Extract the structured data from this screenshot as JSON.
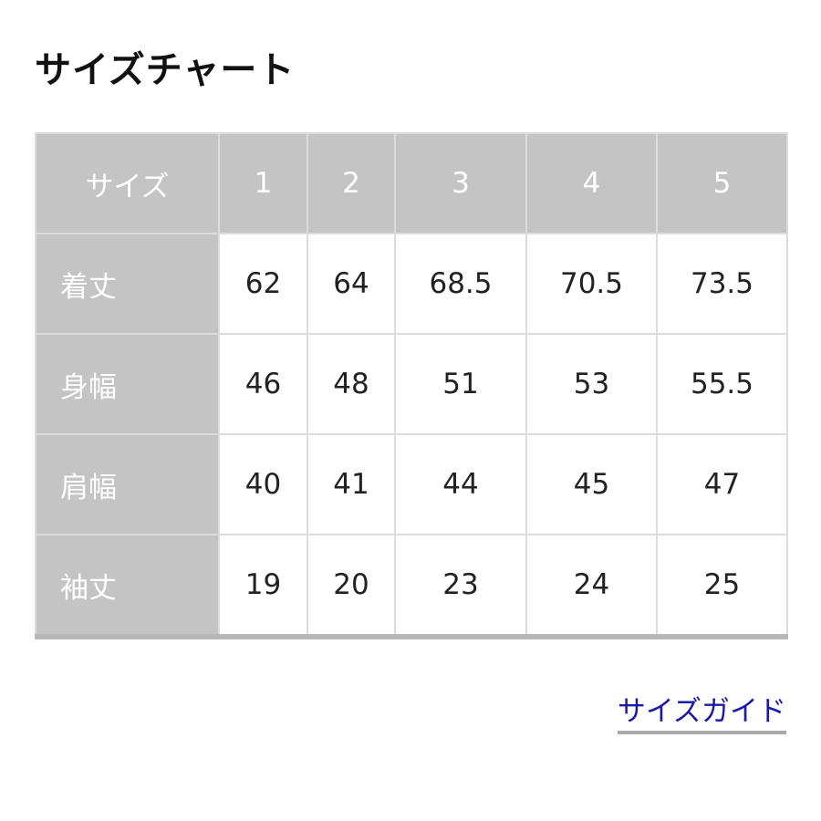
{
  "title": "サイズチャート",
  "table": {
    "corner": "サイズ",
    "sizes": [
      "1",
      "2",
      "3",
      "4",
      "5"
    ],
    "rows": [
      {
        "label": "着丈",
        "values": [
          "62",
          "64",
          "68.5",
          "70.5",
          "73.5"
        ]
      },
      {
        "label": "身幅",
        "values": [
          "46",
          "48",
          "51",
          "53",
          "55.5"
        ]
      },
      {
        "label": "肩幅",
        "values": [
          "40",
          "41",
          "44",
          "45",
          "47"
        ]
      },
      {
        "label": "袖丈",
        "values": [
          "19",
          "20",
          "23",
          "24",
          "25"
        ]
      }
    ]
  },
  "link": {
    "label": "サイズガイド"
  },
  "colors": {
    "header_bg": "#c4c4c4",
    "link": "#1a1aa6"
  }
}
